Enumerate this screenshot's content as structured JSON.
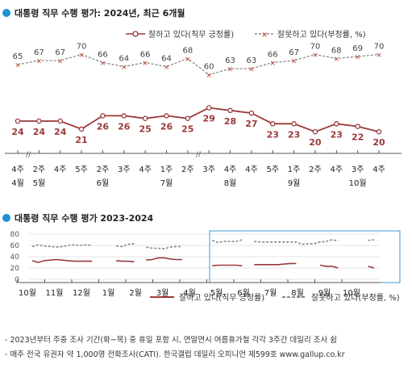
{
  "chart_data": [
    {
      "type": "line",
      "title": "대통령 직무 수행 평가: 2024년, 최근 6개월",
      "legend_position": "top-right",
      "categories": [
        "4주\n4월",
        "2주\n5월",
        "4주",
        "5주",
        "2주\n6월",
        "3주",
        "4주",
        "1주\n7월",
        "2주",
        "3주",
        "4주\n8월",
        "4주",
        "5주",
        "1주\n9월",
        "2주",
        "4주",
        "3주\n10월",
        "4주"
      ],
      "series": [
        {
          "name": "잘하고 있다(직무 긍정률)",
          "color": "#9b3a3a",
          "values": [
            24,
            24,
            24,
            21,
            26,
            26,
            25,
            26,
            25,
            29,
            28,
            27,
            23,
            23,
            20,
            23,
            22,
            20
          ]
        },
        {
          "name": "잘못하고 있다(부정률, %)",
          "color": "#888888",
          "values": [
            65,
            67,
            67,
            70,
            66,
            64,
            66,
            64,
            68,
            60,
            63,
            63,
            66,
            67,
            70,
            68,
            69,
            70
          ]
        }
      ],
      "axis_breaks_after": [
        0,
        8
      ]
    },
    {
      "type": "line",
      "title": "대통령 직무 수행 평가 2023-2024",
      "legend_position": "bottom",
      "ylim": [
        0,
        80
      ],
      "yticks": [
        "80",
        "60",
        "40",
        "20",
        "0"
      ],
      "x_labels": [
        "10월",
        "11월",
        "12월",
        "1월",
        "2월",
        "3월",
        "4월",
        "5월",
        "6월",
        "7월",
        "8월",
        "9월",
        "10월"
      ],
      "series": [
        {
          "name": "잘하고 있다(직무 긍정률)",
          "color": "#9b3a3a",
          "values": [
            33,
            30,
            33,
            34,
            35,
            34,
            33,
            32,
            32,
            32,
            32,
            null,
            null,
            null,
            33,
            32,
            32,
            31,
            null,
            34,
            35,
            38,
            38,
            36,
            35,
            35,
            null,
            null,
            null,
            null,
            24,
            25,
            25,
            25,
            25,
            24,
            null,
            26,
            26,
            26,
            26,
            26,
            27,
            28,
            28,
            null,
            null,
            null,
            25,
            23,
            23,
            20,
            null,
            null,
            null,
            null,
            23,
            20
          ]
        },
        {
          "name": "잘못하고 있다(부정률, %)",
          "color": "#888888",
          "values": [
            58,
            61,
            59,
            58,
            57,
            58,
            60,
            61,
            60,
            61,
            60,
            null,
            null,
            null,
            59,
            58,
            62,
            63,
            null,
            57,
            55,
            55,
            54,
            57,
            58,
            58,
            null,
            null,
            null,
            null,
            69,
            65,
            67,
            67,
            67,
            70,
            null,
            67,
            66,
            66,
            66,
            66,
            66,
            66,
            66,
            62,
            63,
            63,
            66,
            67,
            70,
            68,
            null,
            null,
            null,
            null,
            69,
            70
          ]
        }
      ],
      "highlight_range": "5월–10월"
    }
  ],
  "footnotes": [
    "- 2023년부터 주중 조사 기간(화~목) 중 휴일 포함 시, 연말연시 여름휴가철 각각 3주간 데일리 조사 쉼",
    "- 매주 전국 유권자 약 1,000명 전화조사(CATI). 한국갤럽 데일리 오피니언 제599호 www.gallup.co.kr"
  ],
  "colors": {
    "accent_dot": "#1e90d6",
    "positive": "#9b3a3a",
    "negative": "#888888",
    "highlight_box": "#3a9ad9"
  }
}
